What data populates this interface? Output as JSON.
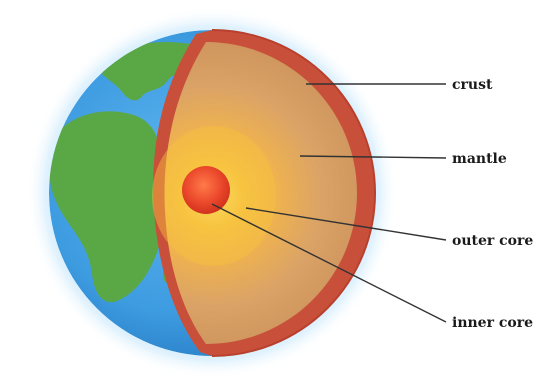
{
  "labels": {
    "crust": "crust",
    "mantle": "mantle",
    "outer_core": "outer core",
    "inner_core": "inner core"
  },
  "colors": {
    "ocean": "#3d9be0",
    "land": "#5aa845",
    "glow": "#bfe4fb",
    "crust": "#c8503a",
    "mantle": "#d9a363",
    "outer_core": "#f3b33b",
    "inner_core": "#e8402a",
    "leader": "#333333"
  }
}
